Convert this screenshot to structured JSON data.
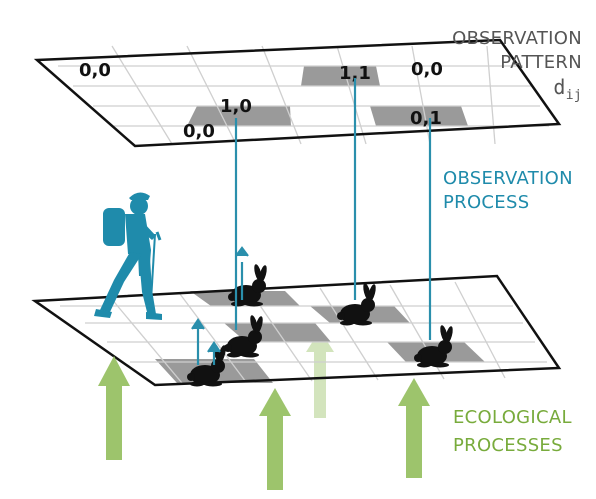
{
  "labels": {
    "observation_pattern": {
      "line1": "OBSERVATION",
      "line2": "PATTERN",
      "symbol": "d",
      "subscript": "ij"
    },
    "observation_process": {
      "line1": "OBSERVATION",
      "line2": "PROCESS"
    },
    "ecological_processes": {
      "line1": "ECOLOGICAL",
      "line2": "PROCESSES"
    }
  },
  "observation_cells": [
    "0,0",
    "1,1",
    "0,0",
    "1,0",
    "0,0",
    "0,1"
  ],
  "colors": {
    "teal": "#1f8bab",
    "green": "#9dc46c",
    "gray_text": "#555555",
    "shaded_cell": "#9a9a9a"
  },
  "icons": [
    "hiker-icon",
    "rabbit-icon",
    "ecological-arrow-icon"
  ]
}
